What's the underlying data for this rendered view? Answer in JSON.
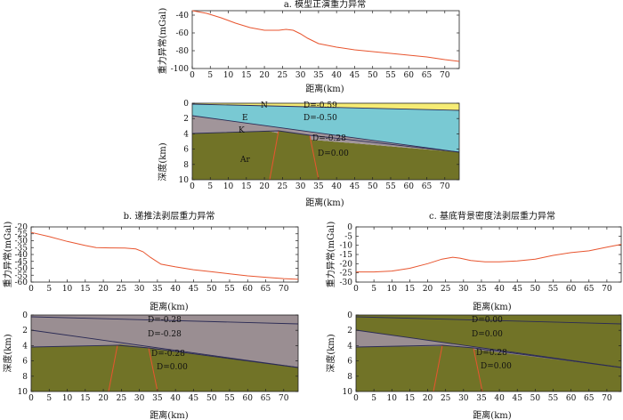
{
  "colors": {
    "axis": "#222222",
    "curve": "#e8552f",
    "layer_n": "#f6ec74",
    "layer_e": "#79c9d3",
    "layer_k": "#a1959a",
    "layer_ar": "#717327",
    "layer_gray": "#9a8e92",
    "fault": "#e8552f",
    "boundary": "#2b2b55"
  },
  "panels": {
    "a": {
      "title": "a. 模型正演重力异常",
      "gravity": {
        "ylabel": "重力异常(mGal)",
        "xlabel": "距离(km)",
        "xlim": [
          0,
          74
        ],
        "ylim": [
          -100,
          -35
        ],
        "yticks": [
          -40,
          -60,
          -80,
          -100
        ],
        "xticks": [
          0,
          5,
          10,
          15,
          20,
          25,
          30,
          35,
          40,
          45,
          50,
          55,
          60,
          65,
          70
        ],
        "x": [
          0,
          4,
          8,
          12,
          16,
          20,
          24,
          26,
          28,
          30,
          32,
          35,
          40,
          45,
          50,
          55,
          60,
          65,
          70,
          74
        ],
        "y": [
          -35,
          -38,
          -43,
          -49,
          -54,
          -57,
          -57,
          -56,
          -57,
          -61,
          -66,
          -72,
          -76,
          -79,
          -81,
          -83,
          -85,
          -87,
          -90,
          -92
        ]
      },
      "section": {
        "ylabel": "深度(km)",
        "xlabel": "距离(km)",
        "xlim": [
          0,
          74
        ],
        "ylim": [
          0,
          10
        ],
        "yticks": [
          0,
          2,
          4,
          6,
          8,
          10
        ],
        "xticks": [
          0,
          5,
          10,
          15,
          20,
          25,
          30,
          35,
          40,
          45,
          50,
          55,
          60,
          65,
          70
        ],
        "layer_labels": [
          "N",
          "E",
          "K",
          "Ar"
        ],
        "density_labels": [
          "D=-0.59",
          "D=-0.50",
          "D=-0.28",
          "D=0.00"
        ]
      }
    },
    "b": {
      "title": "b. 递推法剥层重力异常",
      "gravity": {
        "ylabel": "重力异常(mGal)",
        "xlabel": "距离(km)",
        "xlim": [
          0,
          74
        ],
        "ylim": [
          -60,
          -20
        ],
        "yticks": [
          -20,
          -25,
          -30,
          -35,
          -40,
          -45,
          -50,
          -55,
          -60
        ],
        "xticks": [
          0,
          5,
          10,
          15,
          20,
          25,
          30,
          35,
          40,
          45,
          50,
          55,
          60,
          65,
          70
        ],
        "x": [
          0,
          5,
          10,
          15,
          18,
          22,
          26,
          29,
          31,
          33,
          36,
          40,
          45,
          50,
          55,
          60,
          65,
          70,
          74
        ],
        "y": [
          -24,
          -27,
          -30.5,
          -33.5,
          -35,
          -35.2,
          -35.3,
          -36,
          -38,
          -42,
          -47,
          -49,
          -51,
          -52.5,
          -54,
          -55.5,
          -56.5,
          -57.5,
          -58
        ]
      },
      "section": {
        "ylabel": "深度(km)",
        "xlabel": "距离(km)",
        "xlim": [
          0,
          74
        ],
        "ylim": [
          0,
          10
        ],
        "yticks": [
          0,
          2,
          4,
          6,
          8,
          10
        ],
        "xticks": [
          0,
          5,
          10,
          15,
          20,
          25,
          30,
          35,
          40,
          45,
          50,
          55,
          60,
          65,
          70
        ],
        "density_labels": [
          "D=-0.28",
          "D=-0.28",
          "D=-0.28",
          "D=0.00"
        ]
      }
    },
    "c": {
      "title": "c. 基底背景密度法剥层重力异常",
      "gravity": {
        "ylabel": "重力异常(mGal)",
        "xlabel": "距离(km)",
        "xlim": [
          0,
          74
        ],
        "ylim": [
          -30,
          0
        ],
        "yticks": [
          0,
          -5,
          -10,
          -15,
          -20,
          -25,
          -30
        ],
        "xticks": [
          0,
          5,
          10,
          15,
          20,
          25,
          30,
          35,
          40,
          45,
          50,
          55,
          60,
          65,
          70
        ],
        "x": [
          0,
          5,
          10,
          15,
          20,
          24,
          27,
          29,
          32,
          36,
          40,
          45,
          50,
          55,
          60,
          65,
          70,
          74
        ],
        "y": [
          -24.5,
          -24.5,
          -24,
          -22.5,
          -20,
          -17.5,
          -16.5,
          -17,
          -18.3,
          -19,
          -19,
          -18.5,
          -17.5,
          -15.5,
          -14,
          -13,
          -11,
          -9.5
        ]
      },
      "section": {
        "ylabel": "深度(km)",
        "xlabel": "距离(km)",
        "xlim": [
          0,
          74
        ],
        "ylim": [
          0,
          10
        ],
        "yticks": [
          0,
          2,
          4,
          6,
          8,
          10
        ],
        "xticks": [
          0,
          5,
          10,
          15,
          20,
          25,
          30,
          35,
          40,
          45,
          50,
          55,
          60,
          65,
          70
        ],
        "density_labels": [
          "D=0.00",
          "D=0.00",
          "D=0.28",
          "D=0.00"
        ]
      }
    }
  }
}
